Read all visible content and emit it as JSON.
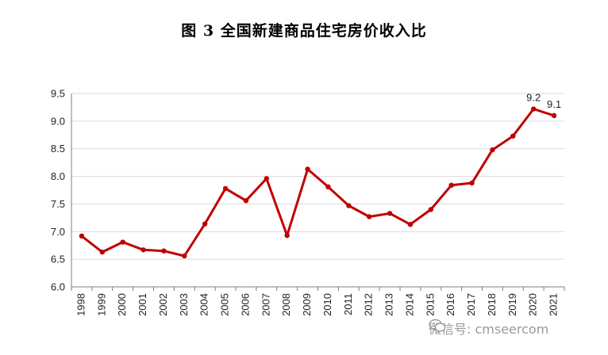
{
  "title": "图 3  全国新建商品住宅房价收入比",
  "watermark": "微信号: cmseercom",
  "colors": {
    "line": "#C00000",
    "grid": "#d9d9d9",
    "axis": "#7f7f7f"
  },
  "chart_data": {
    "type": "line",
    "title": "图 3  全国新建商品住宅房价收入比",
    "xlabel": "",
    "ylabel": "",
    "ylim": [
      6.0,
      9.5
    ],
    "yticks": [
      "6.0",
      "6.5",
      "7.0",
      "7.5",
      "8.0",
      "8.5",
      "9.0",
      "9.5"
    ],
    "grid": true,
    "categories": [
      "1998",
      "1999",
      "2000",
      "2001",
      "2002",
      "2003",
      "2004",
      "2005",
      "2006",
      "2007",
      "2008",
      "2009",
      "2010",
      "2011",
      "2012",
      "2013",
      "2014",
      "2015",
      "2016",
      "2017",
      "2018",
      "2019",
      "2020",
      "2021"
    ],
    "series": [
      {
        "values": [
          6.92,
          6.63,
          6.81,
          6.67,
          6.65,
          6.56,
          7.14,
          7.78,
          7.56,
          7.96,
          6.93,
          8.13,
          7.81,
          7.47,
          7.27,
          7.33,
          7.13,
          7.4,
          7.84,
          7.88,
          8.48,
          8.73,
          9.22,
          9.1
        ]
      }
    ],
    "data_labels": [
      {
        "index": 22,
        "text": "9.2"
      },
      {
        "index": 23,
        "text": "9.1"
      }
    ]
  }
}
